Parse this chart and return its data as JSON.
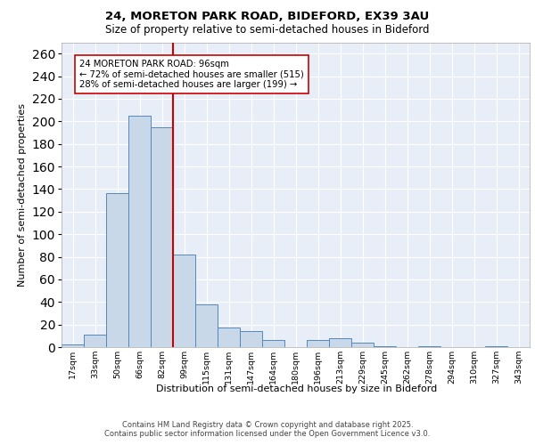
{
  "title1": "24, MORETON PARK ROAD, BIDEFORD, EX39 3AU",
  "title2": "Size of property relative to semi-detached houses in Bideford",
  "xlabel": "Distribution of semi-detached houses by size in Bideford",
  "ylabel": "Number of semi-detached properties",
  "categories": [
    "17sqm",
    "33sqm",
    "50sqm",
    "66sqm",
    "82sqm",
    "99sqm",
    "115sqm",
    "131sqm",
    "147sqm",
    "164sqm",
    "180sqm",
    "196sqm",
    "213sqm",
    "229sqm",
    "245sqm",
    "262sqm",
    "278sqm",
    "294sqm",
    "310sqm",
    "327sqm",
    "343sqm"
  ],
  "values": [
    2,
    11,
    136,
    205,
    195,
    82,
    38,
    17,
    14,
    6,
    0,
    6,
    8,
    4,
    1,
    0,
    1,
    0,
    0,
    1,
    0
  ],
  "bar_color": "#c8d8e8",
  "bar_edge_color": "#5588bb",
  "vline_x_index": 5,
  "vline_color": "#cc0000",
  "annotation_text": "24 MORETON PARK ROAD: 96sqm\n← 72% of semi-detached houses are smaller (515)\n28% of semi-detached houses are larger (199) →",
  "annotation_box_color": "#ffffff",
  "annotation_box_edge": "#cc0000",
  "ylim": [
    0,
    270
  ],
  "yticks": [
    0,
    20,
    40,
    60,
    80,
    100,
    120,
    140,
    160,
    180,
    200,
    220,
    240,
    260
  ],
  "background_color": "#e8eef8",
  "footer1": "Contains HM Land Registry data © Crown copyright and database right 2025.",
  "footer2": "Contains public sector information licensed under the Open Government Licence v3.0."
}
